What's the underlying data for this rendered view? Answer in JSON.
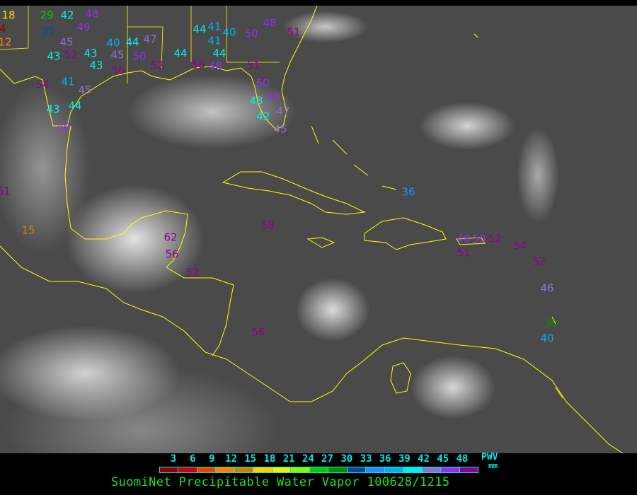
{
  "title": "SuomiNet Precipitable Water Vapor 100628/1215",
  "legend": {
    "unit_label": "PWV",
    "unit": "mm",
    "ticks": [
      "3",
      "6",
      "9",
      "12",
      "15",
      "18",
      "21",
      "24",
      "27",
      "30",
      "33",
      "36",
      "39",
      "42",
      "45",
      "48"
    ],
    "colors": [
      "#900000",
      "#d00000",
      "#f04000",
      "#ff8000",
      "#d08000",
      "#ffd000",
      "#f0f000",
      "#80ff00",
      "#00d000",
      "#009000",
      "#104890",
      "#2090ff",
      "#00b0f0",
      "#00f0f0",
      "#9070d0",
      "#9030f0",
      "#900090"
    ]
  },
  "colors": {
    "coastline": "#ffff00",
    "ocean": "#4a4a4a",
    "title": "#20e020",
    "legend_text": "#00e8f0"
  },
  "stations": [
    "18",
    "29",
    "42",
    "48",
    "49",
    "35",
    "4",
    "12",
    "45",
    "40",
    "44",
    "47",
    "52",
    "43",
    "43",
    "43",
    "45",
    "50",
    "52",
    "56",
    "44",
    "58",
    "48",
    "41",
    "40",
    "44",
    "41",
    "44",
    "50",
    "48",
    "51",
    "51",
    "50",
    "48",
    "43",
    "42",
    "47",
    "45",
    "54",
    "41",
    "45",
    "43",
    "44",
    "49",
    "61",
    "15",
    "36",
    "62",
    "56",
    "52",
    "58",
    "56",
    "48",
    "50",
    "52",
    "51",
    "54",
    "52",
    "46",
    "30",
    "40"
  ]
}
